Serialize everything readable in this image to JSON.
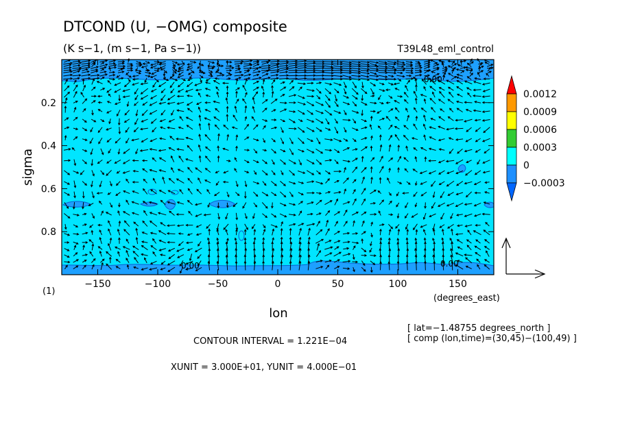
{
  "chart_data": {
    "type": "heatmap",
    "title": "DTCOND (U, −OMG) composite",
    "subtitle": "(K s−1, (m s−1, Pa s−1))",
    "run_label": "T39L48_eml_control",
    "xlabel": "lon",
    "ylabel": "sigma",
    "x_units": "(degrees_east)",
    "panel_label": "(1)",
    "xlim": [
      -180,
      180
    ],
    "ylim": [
      0.0,
      1.0
    ],
    "y_reversed": true,
    "x_ticks": [
      -150,
      -100,
      -50,
      0,
      50,
      100,
      150
    ],
    "x_tick_labels": [
      "−150",
      "−100",
      "−50",
      "0",
      "50",
      "100",
      "150"
    ],
    "y_ticks": [
      0.2,
      0.4,
      0.6,
      0.8
    ],
    "y_tick_labels": [
      "0.2",
      "0.4",
      "0.6",
      "0.8"
    ],
    "contour_labels": [
      "0.00",
      "0.00",
      "0.00"
    ],
    "colorbar": {
      "levels": [
        "0.0012",
        "0.0009",
        "0.0006",
        "0.0003",
        "0",
        "−0.0003"
      ],
      "colors": [
        "#ff0000",
        "#ff9900",
        "#ffff00",
        "#33cc33",
        "#00ffff",
        "#1e90ff",
        "#0066ff"
      ]
    },
    "colors": {
      "background_field": "#00e5ff",
      "negative_band": "#1ea0ff",
      "band_edge": "#0a60d0"
    },
    "notes": {
      "lat": "[ lat=−1.48755 degrees_north ]",
      "comp": "[ comp (lon,time)=(30,45)−(100,49) ]",
      "contour_interval": "CONTOUR INTERVAL = 1.221E−04",
      "units": "XUNIT = 3.000E+01, YUNIT = 4.000E−01"
    }
  }
}
